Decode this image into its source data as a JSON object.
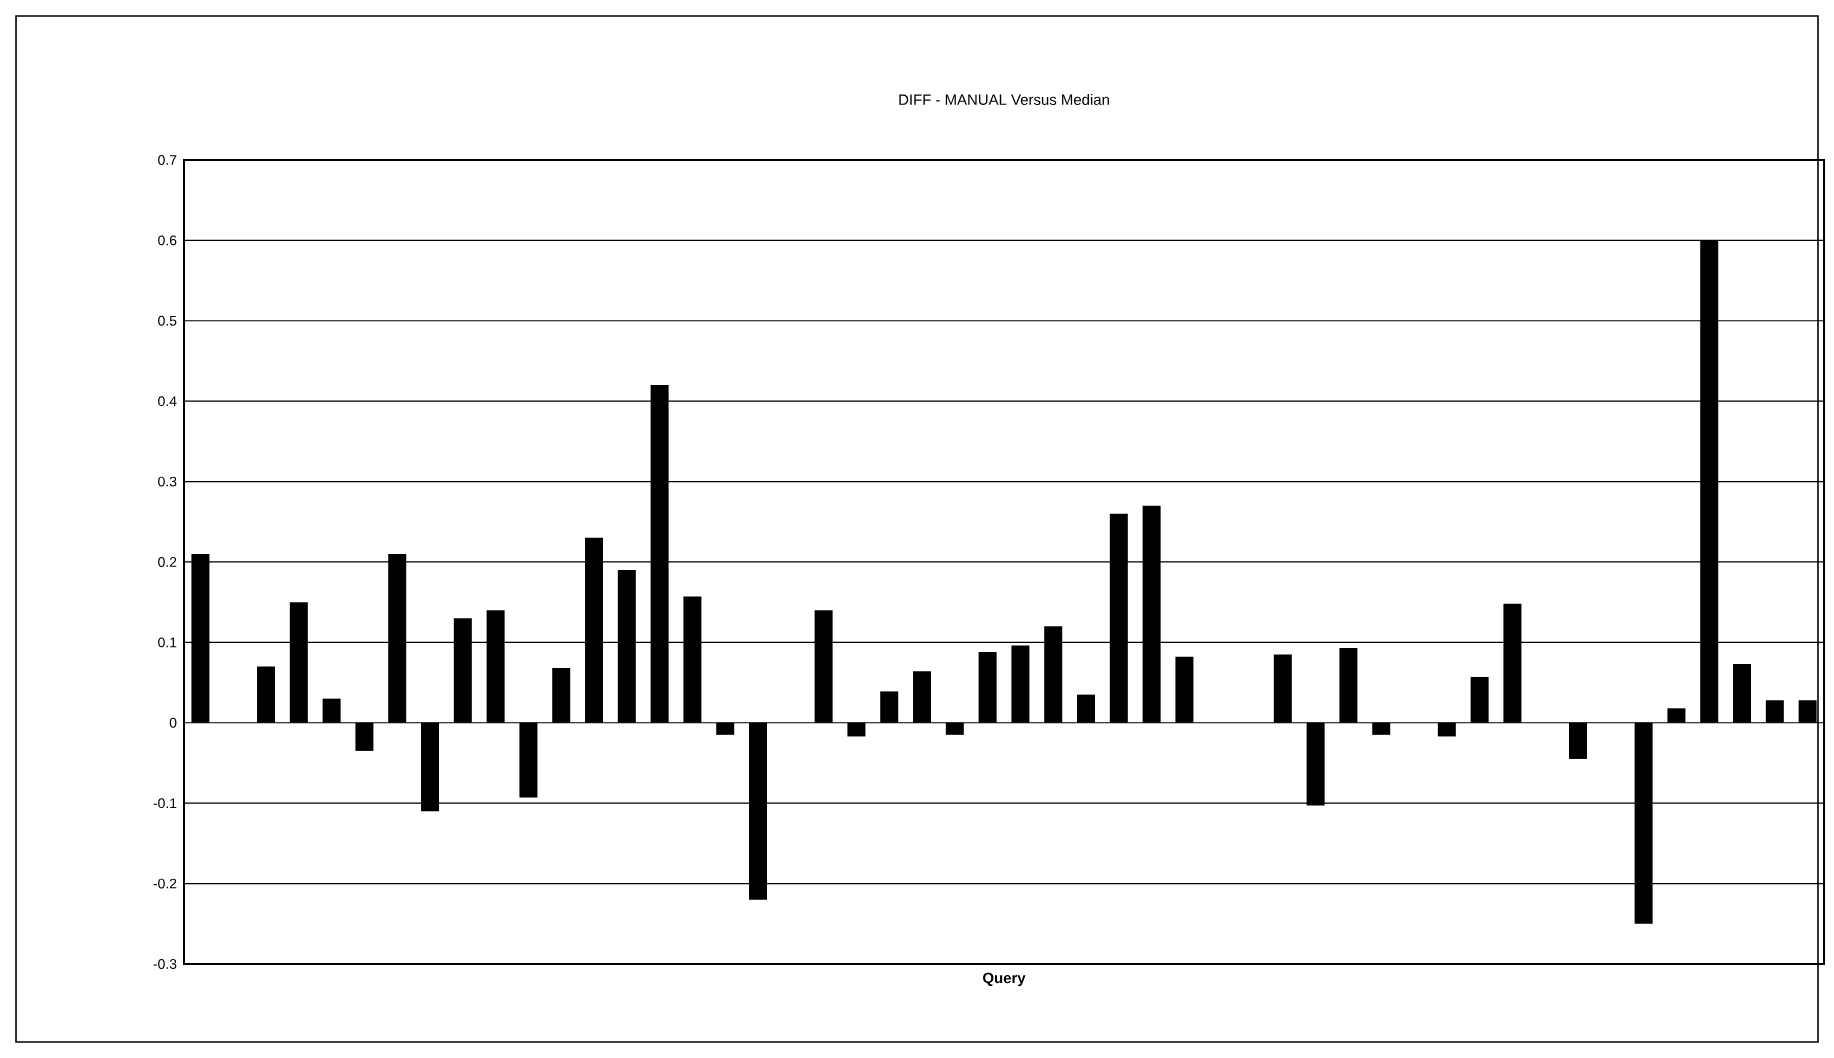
{
  "chart_data": {
    "type": "bar",
    "title": "DIFF - MANUAL Versus Median",
    "xlabel": "Query",
    "categories": [
      null,
      null,
      null,
      null,
      null,
      null,
      null,
      null,
      null,
      null,
      null,
      null,
      null,
      null,
      null,
      null,
      null,
      null,
      null,
      null,
      null,
      null,
      null,
      null,
      null,
      null,
      null,
      null,
      null,
      null,
      null,
      null,
      null,
      null,
      null,
      null,
      null,
      null,
      null,
      null,
      null,
      null,
      null,
      null,
      null,
      null,
      null,
      null,
      null,
      null
    ],
    "values": [
      0.21,
      null,
      0.07,
      0.15,
      0.03,
      -0.035,
      0.21,
      -0.11,
      0.13,
      0.14,
      -0.093,
      0.068,
      0.23,
      0.19,
      0.42,
      0.157,
      -0.015,
      -0.22,
      null,
      0.14,
      -0.017,
      0.039,
      0.064,
      -0.015,
      0.088,
      0.096,
      0.12,
      0.035,
      0.26,
      0.27,
      0.082,
      null,
      null,
      0.085,
      -0.103,
      0.093,
      -0.015,
      null,
      -0.017,
      0.057,
      0.148,
      null,
      -0.045,
      null,
      -0.25,
      0.018,
      0.6,
      0.073,
      0.028,
      0.028
    ],
    "color": "#000000",
    "ylim": [
      -0.3,
      0.7
    ],
    "yticks": [
      -0.3,
      -0.2,
      -0.1,
      0,
      0.1,
      0.2,
      0.3,
      0.4,
      0.5,
      0.6,
      0.7
    ],
    "grid": "y"
  }
}
